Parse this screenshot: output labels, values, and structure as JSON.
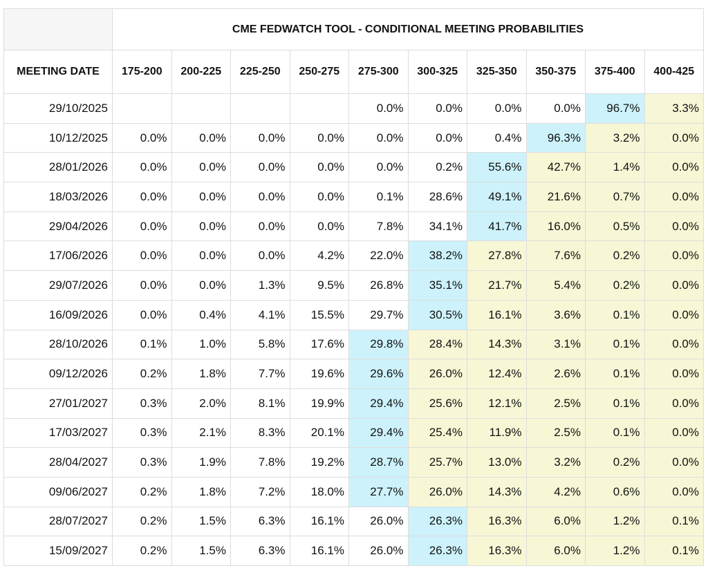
{
  "header": {
    "title": "CME FEDWATCH TOOL - CONDITIONAL MEETING PROBABILITIES"
  },
  "table": {
    "columns": [
      "MEETING DATE",
      "175-200",
      "200-225",
      "225-250",
      "250-275",
      "275-300",
      "300-325",
      "325-350",
      "350-375",
      "375-400",
      "400-425"
    ],
    "rows": [
      [
        "29/10/2025",
        null,
        null,
        null,
        null,
        "0.0%",
        "0.0%",
        "0.0%",
        "0.0%",
        "96.7%",
        "3.3%"
      ],
      [
        "10/12/2025",
        "0.0%",
        "0.0%",
        "0.0%",
        "0.0%",
        "0.0%",
        "0.0%",
        "0.4%",
        "96.3%",
        "3.2%",
        "0.0%"
      ],
      [
        "28/01/2026",
        "0.0%",
        "0.0%",
        "0.0%",
        "0.0%",
        "0.0%",
        "0.2%",
        "55.6%",
        "42.7%",
        "1.4%",
        "0.0%"
      ],
      [
        "18/03/2026",
        "0.0%",
        "0.0%",
        "0.0%",
        "0.0%",
        "0.1%",
        "28.6%",
        "49.1%",
        "21.6%",
        "0.7%",
        "0.0%"
      ],
      [
        "29/04/2026",
        "0.0%",
        "0.0%",
        "0.0%",
        "0.0%",
        "7.8%",
        "34.1%",
        "41.7%",
        "16.0%",
        "0.5%",
        "0.0%"
      ],
      [
        "17/06/2026",
        "0.0%",
        "0.0%",
        "0.0%",
        "4.2%",
        "22.0%",
        "38.2%",
        "27.8%",
        "7.6%",
        "0.2%",
        "0.0%"
      ],
      [
        "29/07/2026",
        "0.0%",
        "0.0%",
        "1.3%",
        "9.5%",
        "26.8%",
        "35.1%",
        "21.7%",
        "5.4%",
        "0.2%",
        "0.0%"
      ],
      [
        "16/09/2026",
        "0.0%",
        "0.4%",
        "4.1%",
        "15.5%",
        "29.7%",
        "30.5%",
        "16.1%",
        "3.6%",
        "0.1%",
        "0.0%"
      ],
      [
        "28/10/2026",
        "0.1%",
        "1.0%",
        "5.8%",
        "17.6%",
        "29.8%",
        "28.4%",
        "14.3%",
        "3.1%",
        "0.1%",
        "0.0%"
      ],
      [
        "09/12/2026",
        "0.2%",
        "1.8%",
        "7.7%",
        "19.6%",
        "29.6%",
        "26.0%",
        "12.4%",
        "2.6%",
        "0.1%",
        "0.0%"
      ],
      [
        "27/01/2027",
        "0.3%",
        "2.0%",
        "8.1%",
        "19.9%",
        "29.4%",
        "25.6%",
        "12.1%",
        "2.5%",
        "0.1%",
        "0.0%"
      ],
      [
        "17/03/2027",
        "0.3%",
        "2.1%",
        "8.3%",
        "20.1%",
        "29.4%",
        "25.4%",
        "11.9%",
        "2.5%",
        "0.1%",
        "0.0%"
      ],
      [
        "28/04/2027",
        "0.3%",
        "1.9%",
        "7.8%",
        "19.2%",
        "28.7%",
        "25.7%",
        "13.0%",
        "3.2%",
        "0.2%",
        "0.0%"
      ],
      [
        "09/06/2027",
        "0.2%",
        "1.8%",
        "7.2%",
        "18.0%",
        "27.7%",
        "26.0%",
        "14.3%",
        "4.2%",
        "0.6%",
        "0.0%"
      ],
      [
        "28/07/2027",
        "0.2%",
        "1.5%",
        "6.3%",
        "16.1%",
        "26.0%",
        "26.3%",
        "16.3%",
        "6.0%",
        "1.2%",
        "0.1%"
      ],
      [
        "15/09/2027",
        "0.2%",
        "1.5%",
        "6.3%",
        "16.1%",
        "26.0%",
        "26.3%",
        "16.3%",
        "6.0%",
        "1.2%",
        "0.1%"
      ]
    ],
    "highlight_colors": {
      "max": "#cdf2fb",
      "above_max": "#f7f7d6"
    }
  }
}
